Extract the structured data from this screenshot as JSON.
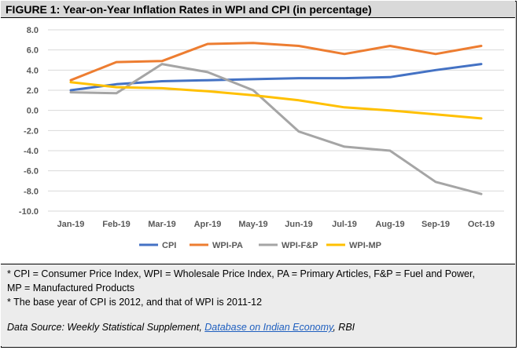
{
  "title": "FIGURE 1: Year-on-Year Inflation Rates in WPI and CPI (in percentage)",
  "chart_data": {
    "type": "line",
    "categories": [
      "Jan-19",
      "Feb-19",
      "Mar-19",
      "Apr-19",
      "May-19",
      "Jun-19",
      "Jul-19",
      "Aug-19",
      "Sep-19",
      "Oct-19"
    ],
    "ylim": [
      -10,
      8
    ],
    "yticks": [
      "8.0",
      "6.0",
      "4.0",
      "2.0",
      "0.0",
      "-2.0",
      "-4.0",
      "-6.0",
      "-8.0",
      "-10.0"
    ],
    "ytick_values": [
      8,
      6,
      4,
      2,
      0,
      -2,
      -4,
      -6,
      -8,
      -10
    ],
    "grid": true,
    "legend_position": "bottom",
    "series": [
      {
        "name": "CPI",
        "color": "#4472c4",
        "values": [
          2.0,
          2.6,
          2.9,
          3.0,
          3.1,
          3.2,
          3.2,
          3.3,
          4.0,
          4.6
        ]
      },
      {
        "name": "WPI-PA",
        "color": "#ed7d31",
        "values": [
          3.0,
          4.8,
          4.9,
          6.6,
          6.7,
          6.4,
          5.6,
          6.4,
          5.6,
          6.4
        ]
      },
      {
        "name": "WPI-F&P",
        "color": "#a5a5a5",
        "values": [
          1.8,
          1.7,
          4.6,
          3.8,
          2.0,
          -2.1,
          -3.6,
          -4.0,
          -7.1,
          -8.3
        ]
      },
      {
        "name": "WPI-MP",
        "color": "#ffc000",
        "values": [
          2.8,
          2.3,
          2.2,
          1.9,
          1.5,
          1.0,
          0.3,
          0.0,
          -0.4,
          -0.8
        ]
      }
    ]
  },
  "notes": {
    "line1": "* CPI = Consumer Price Index, WPI = Wholesale Price Index, PA = Primary Articles, F&P = Fuel and Power,",
    "line2": "MP = Manufactured Products",
    "line3": "* The base year of CPI is 2012, and that of WPI is 2011-12",
    "source_prefix": "Data Source: Weekly Statistical Supplement, ",
    "source_link": "Database on Indian Economy",
    "source_suffix": ", RBI"
  }
}
